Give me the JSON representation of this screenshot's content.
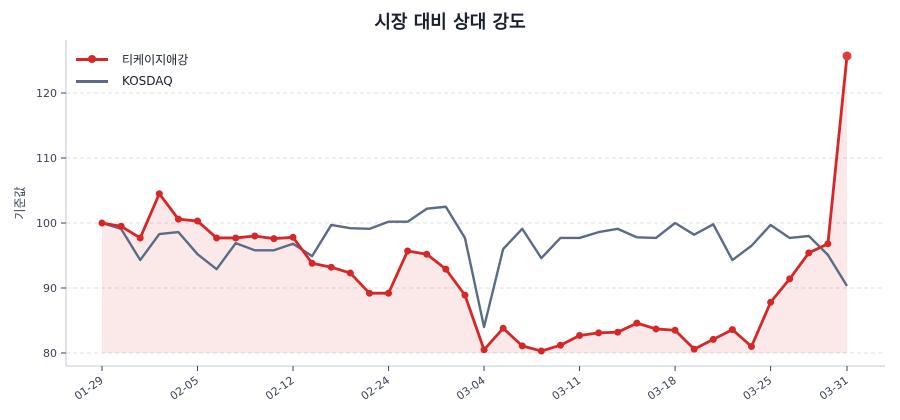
{
  "chart_data": {
    "type": "line",
    "title": "시장 대비 상대 강도",
    "xlabel": "",
    "ylabel": "기준값",
    "ylim": [
      78,
      128
    ],
    "yticks": [
      80,
      90,
      100,
      110,
      120
    ],
    "xtick_labels": [
      "01-29",
      "02-05",
      "02-12",
      "02-24",
      "03-04",
      "03-11",
      "03-18",
      "03-25",
      "03-31"
    ],
    "xtick_indices": [
      0,
      5,
      10,
      15,
      20,
      25,
      30,
      35,
      39
    ],
    "grid": "horizontal dashed",
    "legend_position": "upper left",
    "fill_baseline": 80,
    "series": [
      {
        "name": "티케이지애강",
        "color": "#d62728",
        "marker": "circle",
        "fill": true,
        "values": [
          100.0,
          99.5,
          97.7,
          104.5,
          100.6,
          100.3,
          97.7,
          97.7,
          98.0,
          97.6,
          97.8,
          93.8,
          93.2,
          92.3,
          89.2,
          89.2,
          95.7,
          95.2,
          92.9,
          88.9,
          80.5,
          83.8,
          81.1,
          80.3,
          81.2,
          82.7,
          83.1,
          83.2,
          84.6,
          83.7,
          83.5,
          80.6,
          82.1,
          83.6,
          81.0,
          87.8,
          91.4,
          95.4,
          96.8,
          125.7
        ]
      },
      {
        "name": "KOSDAQ",
        "color": "#5a6b85",
        "marker": "none",
        "fill": false,
        "values": [
          100.0,
          99.1,
          94.3,
          98.3,
          98.6,
          95.2,
          92.9,
          96.9,
          95.8,
          95.8,
          96.8,
          94.9,
          99.7,
          99.2,
          99.1,
          100.2,
          100.2,
          102.2,
          102.5,
          97.7,
          84.0,
          96.0,
          99.1,
          94.6,
          97.7,
          97.7,
          98.6,
          99.1,
          97.8,
          97.7,
          100.0,
          98.2,
          99.8,
          94.3,
          96.5,
          99.7,
          97.7,
          98.0,
          95.1,
          90.3
        ]
      }
    ]
  }
}
